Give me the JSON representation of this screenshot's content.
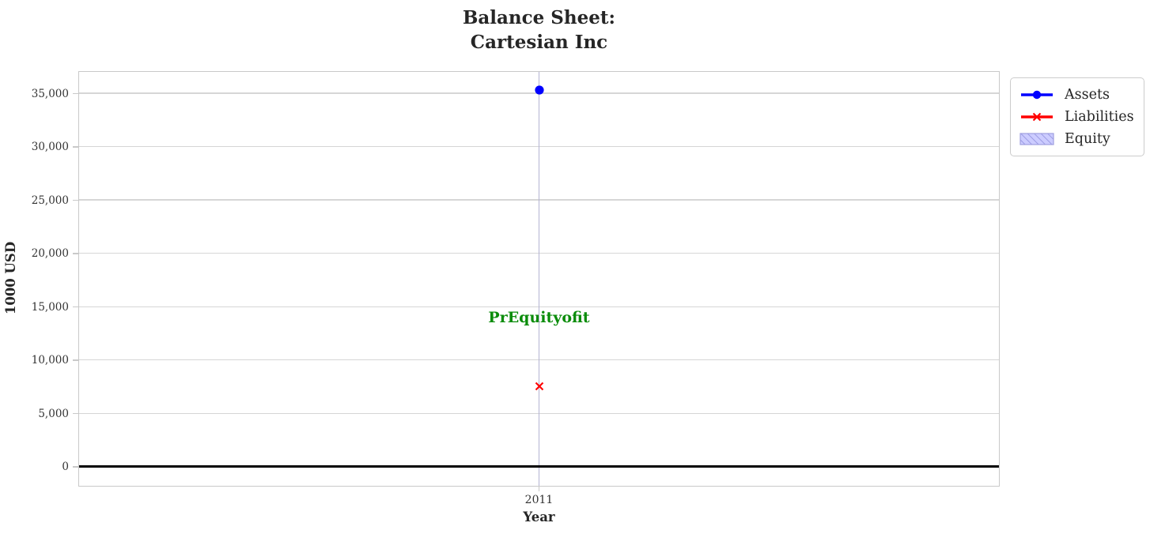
{
  "title": {
    "line1": "Balance Sheet:",
    "line2": "Cartesian Inc"
  },
  "axes": {
    "ylabel": "1000 USD",
    "xlabel": "Year",
    "xtick_labels": [
      "2011"
    ],
    "ytick_labels": [
      "0",
      "5,000",
      "10,000",
      "15,000",
      "20,000",
      "25,000",
      "30,000",
      "35,000"
    ]
  },
  "legend": {
    "items": [
      {
        "label": "Assets",
        "marker": "line-circle",
        "color": "#0000ff"
      },
      {
        "label": "Liabilities",
        "marker": "line-x",
        "color": "#ff0000"
      },
      {
        "label": "Equity",
        "marker": "hatched-patch",
        "color": "#ccccff"
      }
    ]
  },
  "annotation": {
    "text": "PrEquityofit",
    "color": "#0a8c0a"
  },
  "colors": {
    "assets": "#0000ff",
    "liabilities": "#ff0000",
    "annotation_green": "#0a8c0a",
    "grid_horizontal": "#d6d6d6",
    "grid_vertical": "#b4b4d2",
    "axis_border": "#c9c9c9",
    "zero_line": "#000000",
    "text": "#262626",
    "equity_fill": "#ccccff",
    "equity_hatch": "#9090dd"
  },
  "chart_data": {
    "type": "scatter",
    "title": "Balance Sheet: Cartesian Inc",
    "xlabel": "Year",
    "ylabel": "1000 USD",
    "categories": [
      "2011"
    ],
    "series": [
      {
        "name": "Assets",
        "values": [
          35300
        ],
        "color": "#0000ff",
        "marker": "circle"
      },
      {
        "name": "Liabilities",
        "values": [
          7500
        ],
        "color": "#ff0000",
        "marker": "x"
      },
      {
        "name": "Equity",
        "values": [],
        "color": "#ccccff",
        "marker": "hatched-area"
      }
    ],
    "annotations": [
      {
        "text": "PrEquityofit",
        "x": "2011",
        "y": 14000,
        "color": "#0a8c0a"
      }
    ],
    "yticks": [
      0,
      5000,
      10000,
      15000,
      20000,
      25000,
      30000,
      35000
    ],
    "ylim": [
      -1800,
      37000
    ],
    "grid": true,
    "legend_position": "outside upper right",
    "zero_line": true
  }
}
